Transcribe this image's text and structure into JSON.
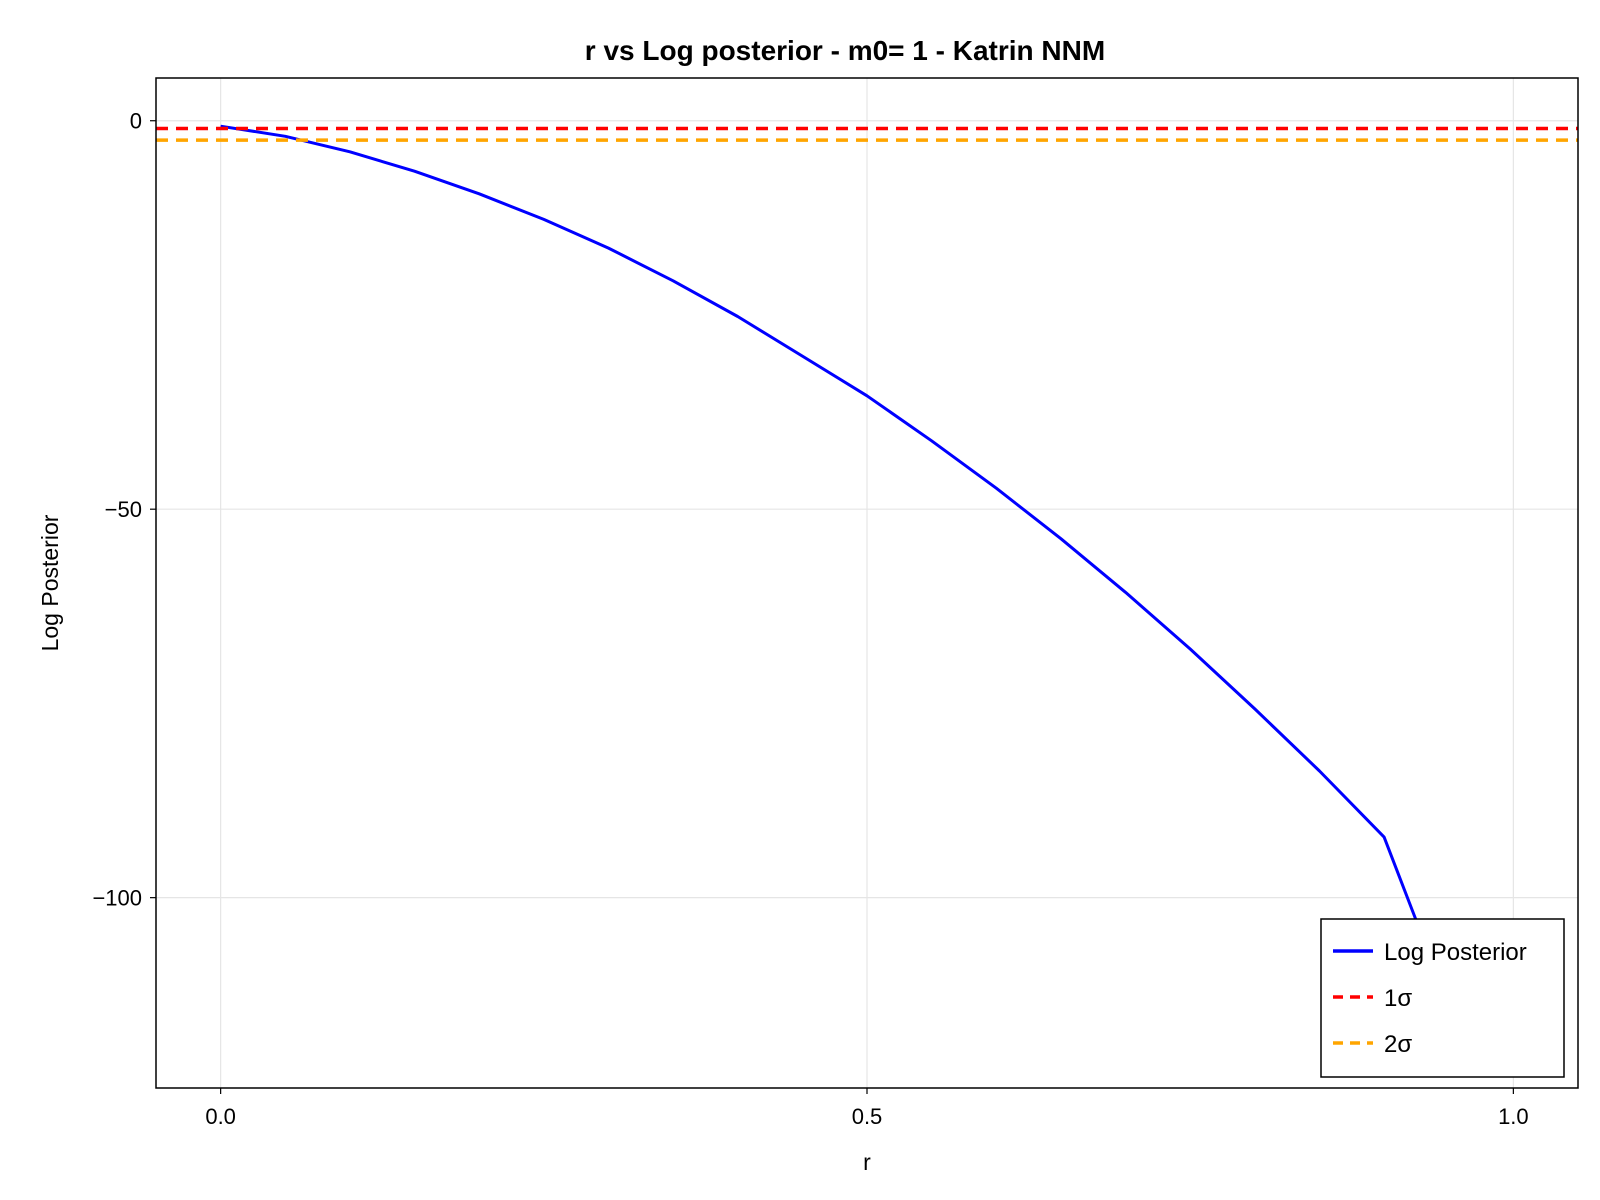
{
  "chart_data": {
    "type": "line",
    "title": "r vs Log posterior - m0= 1 - Katrin NNM",
    "xlabel": "r",
    "ylabel": "Log Posterior",
    "xlim": [
      -0.05,
      1.05
    ],
    "ylim": [
      -124.5,
      5.5
    ],
    "xticks": [
      0.0,
      0.5,
      1.0
    ],
    "xtick_labels": [
      "0.0",
      "0.5",
      "1.0"
    ],
    "yticks": [
      0,
      -50,
      -100
    ],
    "ytick_labels": [
      "0",
      "−50",
      "−100"
    ],
    "grid": true,
    "legend_position": "bottom-right",
    "series": [
      {
        "name": "Log Posterior",
        "color": "#0000ff",
        "style": "solid",
        "x": [
          0.0,
          0.05,
          0.1,
          0.15,
          0.2,
          0.25,
          0.3,
          0.35,
          0.4,
          0.45,
          0.5,
          0.55,
          0.6,
          0.65,
          0.7,
          0.75,
          0.8,
          0.85,
          0.9,
          0.925
        ],
        "y": [
          -0.7,
          -2.0,
          -4.0,
          -6.5,
          -9.4,
          -12.7,
          -16.4,
          -20.6,
          -25.2,
          -30.3,
          -35.4,
          -41.2,
          -47.3,
          -53.8,
          -60.7,
          -68.0,
          -75.7,
          -83.7,
          -92.2,
          -103.0
        ]
      },
      {
        "name": "1σ",
        "color": "#ff0000",
        "style": "dashed",
        "value": -1.0
      },
      {
        "name": "2σ",
        "color": "#ffa500",
        "style": "dashed",
        "value": -2.5
      }
    ]
  }
}
